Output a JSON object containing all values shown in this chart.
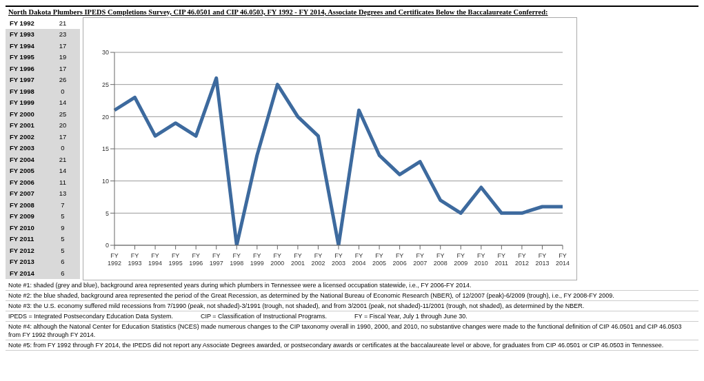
{
  "chart_data": [
    {
      "type": "other",
      "categories": [
        "FY 1992",
        "FY 1993",
        "FY 1994",
        "FY 1995",
        "FY 1996",
        "FY 1997",
        "FY 1998",
        "FY 1999",
        "FY 2000",
        "FY 2001",
        "FY 2002",
        "FY 2003",
        "FY 2004",
        "FY 2005",
        "FY 2006",
        "FY 2007",
        "FY 2008",
        "FY 2009",
        "FY 2010",
        "FY 2011",
        "FY 2012",
        "FY 2013",
        "FY 2014"
      ],
      "values": [
        21,
        23,
        17,
        19,
        17,
        26,
        0,
        14,
        25,
        20,
        17,
        0,
        21,
        14,
        11,
        13,
        7,
        5,
        9,
        5,
        5,
        6,
        6
      ],
      "data_labels": true
    },
    {
      "type": "line",
      "title": "North Dakota Plumbers IPEDS Completions Survey, CIP 46.0501 and CIP 46.0503, FY 1992 - FY 2014, Associate Degrees and Certificates Below the Baccalaureate Conferred:",
      "categories": [
        "FY 1992",
        "FY 1993",
        "FY 1994",
        "FY 1995",
        "FY 1996",
        "FY 1997",
        "FY 1998",
        "FY 1999",
        "FY 2000",
        "FY 2001",
        "FY 2002",
        "FY 2003",
        "FY 2004",
        "FY 2005",
        "FY 2006",
        "FY 2007",
        "FY 2008",
        "FY 2009",
        "FY 2010",
        "FY 2011",
        "FY 2012",
        "FY 2013",
        "FY 2014"
      ],
      "series": [
        {
          "color": "#3d6a9e",
          "values": [
            21,
            23,
            17,
            19,
            17,
            26,
            0,
            14,
            25,
            20,
            17,
            0,
            21,
            14,
            11,
            13,
            7,
            5,
            9,
            5,
            5,
            6,
            6
          ]
        }
      ],
      "ylim": [
        0,
        30
      ],
      "yticks": [
        0,
        5,
        10,
        15,
        20,
        25,
        30
      ],
      "grid": "y",
      "marker": "none",
      "line_style": "solid",
      "annotations": [
        "Note #1:  shaded (grey and blue), background area represented years during which plumbers in Tennessee were a licensed occupation statewide, i.e., FY 2006-FY 2014.",
        "Note #2:  the blue shaded, background area represented the period of the Great Recession, as determined by the National Bureau of Economic Research (NBER), of 12/2007 (peak)-6/2009 (trough), i.e., FY 2008-FY 2009.",
        "Note #3:  the U.S. economy suffered mild recessions from 7/1990 (peak, not shaded)-3/1991 (trough, not shaded), and from 3/2001 (peak, not shaded)-11/2001 (trough, not shaded),  as determined by the NBER.",
        "IPEDS = Integrated Postsecondary Education Data System.",
        "CIP = Classification of Instructional Programs.",
        "FY = Fiscal Year, July 1 through June 30.",
        "Note #4:  although the Natonal Center for Education Statistics (NCES) made numerous changes to the CIP taxonomy overall in 1990, 2000, and 2010, no substantive changes were made to the functional definition of CIP 46.0501 and CIP 46.0503 from FY 1992 through FY 2014.",
        "Note #5:  from FY 1992 through FY 2014, the IPEDS did not report any Associate Degrees awarded, or postsecondary awards or certificates at the baccalaureate level or above, for graduates from CIP 46.0501 or CIP 46.0503 in Tennessee."
      ]
    }
  ]
}
